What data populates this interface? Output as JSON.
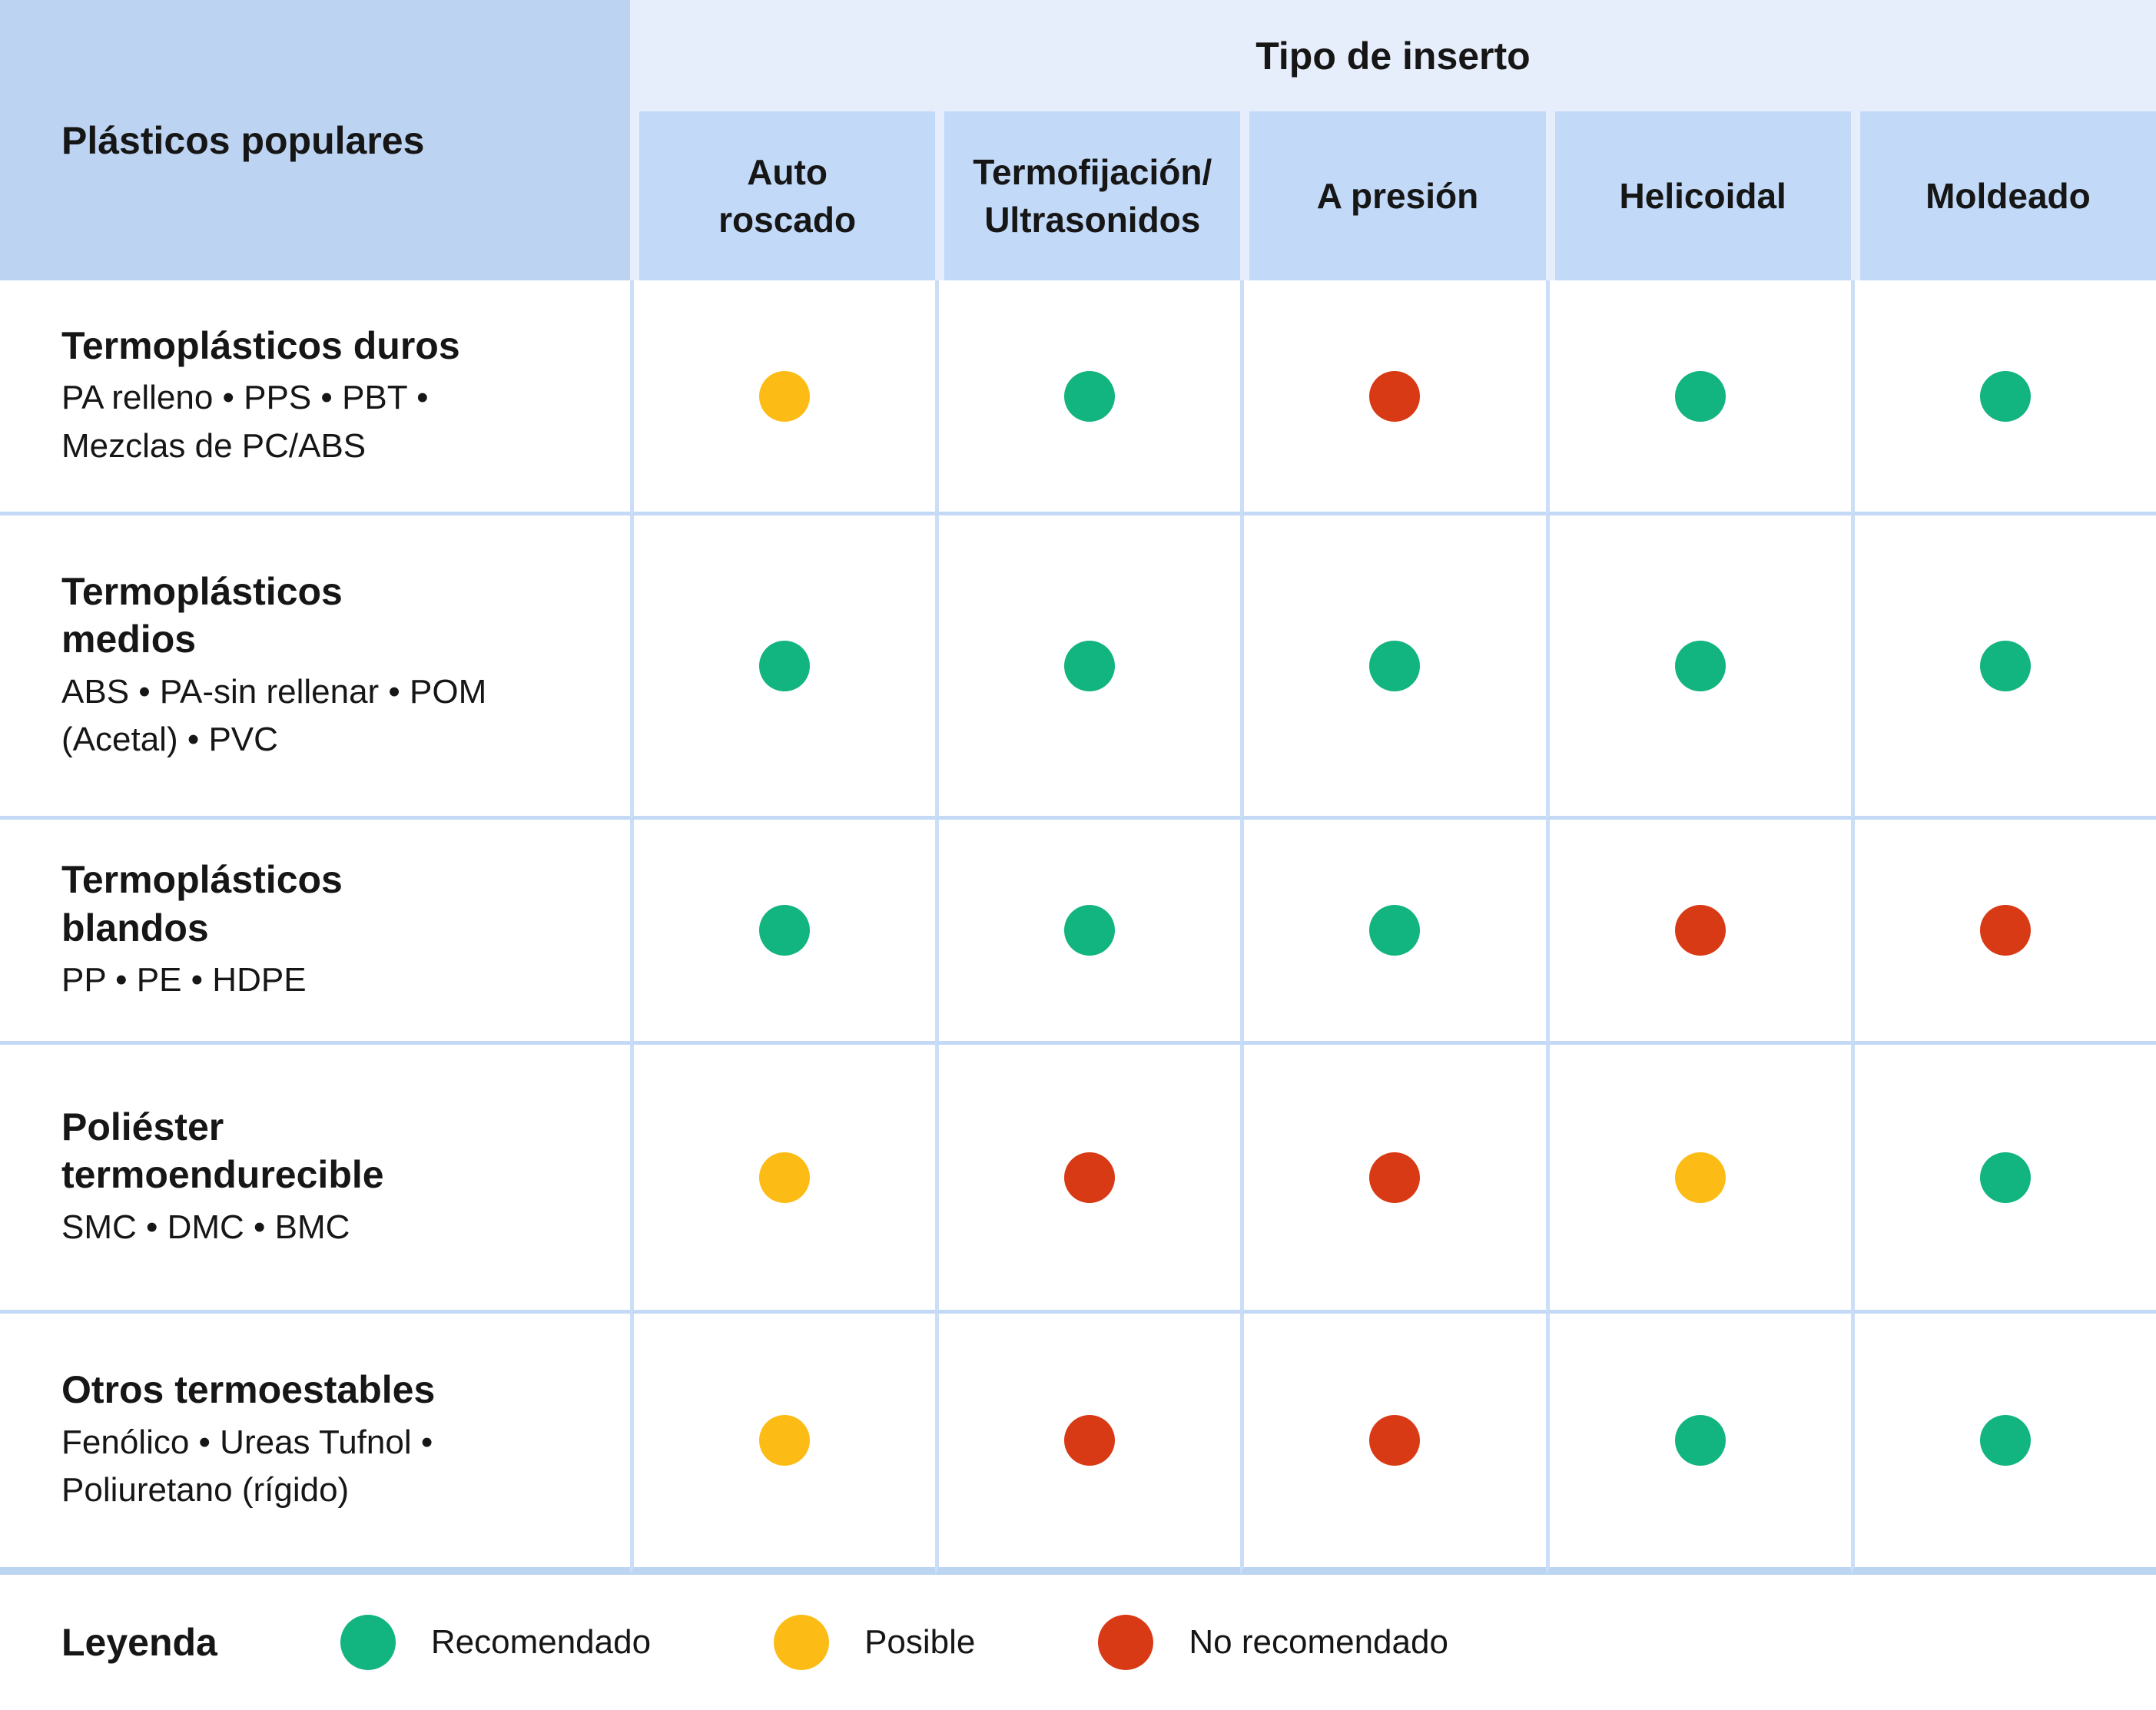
{
  "colors": {
    "recommended": "#12b47f",
    "possible": "#fcbc15",
    "not_recommended": "#d93a16",
    "corner_cell_bg": "#bdd3f2",
    "header_cell_bg": "#c2d9f7",
    "band_bg": "#e6eefb",
    "grid_v": "#cbdef7",
    "grid_h": "#c3d9f5",
    "table_bottom": "#bcd5f3",
    "text": "#161616"
  },
  "table": {
    "corner_header": "Plásticos populares",
    "group_header": "Tipo de inserto",
    "columns": [
      "Auto\nroscado",
      "Termofijación/\nUltrasonidos",
      "A presión",
      "Helicoidal",
      "Moldeado"
    ],
    "rows": [
      {
        "title": "Termoplásticos duros",
        "subtitle": "PA relleno • PPS • PBT •\nMezclas de PC/ABS",
        "ratings": [
          "possible",
          "recommended",
          "not_recommended",
          "recommended",
          "recommended"
        ]
      },
      {
        "title": "Termoplásticos\nmedios",
        "subtitle": "ABS • PA-sin rellenar • POM\n(Acetal) • PVC",
        "ratings": [
          "recommended",
          "recommended",
          "recommended",
          "recommended",
          "recommended"
        ]
      },
      {
        "title": "Termoplásticos\nblandos",
        "subtitle": "PP • PE • HDPE",
        "ratings": [
          "recommended",
          "recommended",
          "recommended",
          "not_recommended",
          "not_recommended"
        ]
      },
      {
        "title": "Poliéster\ntermoendurecible",
        "subtitle": "SMC • DMC • BMC",
        "ratings": [
          "possible",
          "not_recommended",
          "not_recommended",
          "possible",
          "recommended"
        ]
      },
      {
        "title": "Otros termoestables",
        "subtitle": "Fenólico • Ureas Tufnol •\nPoliuretano (rígido)",
        "ratings": [
          "possible",
          "not_recommended",
          "not_recommended",
          "recommended",
          "recommended"
        ]
      }
    ]
  },
  "legend": {
    "title": "Leyenda",
    "items": [
      {
        "label": "Recomendado",
        "key": "recommended"
      },
      {
        "label": "Posible",
        "key": "possible"
      },
      {
        "label": "No recomendado",
        "key": "not_recommended"
      }
    ]
  }
}
